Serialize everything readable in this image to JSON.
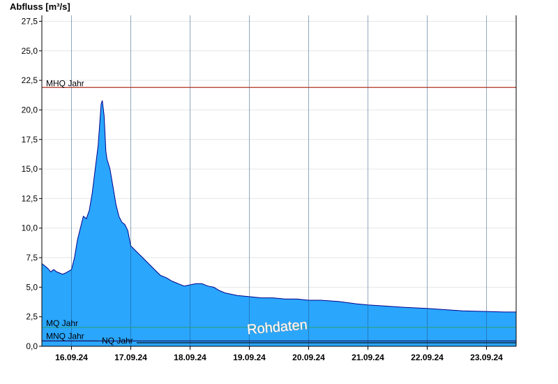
{
  "chart_data": {
    "type": "area",
    "ylabel": "Abfluss [m³/s]",
    "xlabel": "",
    "ylim": [
      0,
      28
    ],
    "grid": true,
    "y_ticks": [
      "0,0",
      "2,5",
      "5,0",
      "7,5",
      "10,0",
      "12,5",
      "15,0",
      "17,5",
      "20,0",
      "22,5",
      "25,0",
      "27,5"
    ],
    "y_tick_values": [
      0,
      2.5,
      5,
      7.5,
      10,
      12.5,
      15,
      17.5,
      20,
      22.5,
      25,
      27.5
    ],
    "x_ticks": [
      "16.09.24",
      "17.09.24",
      "18.09.24",
      "19.09.24",
      "20.09.24",
      "21.09.24",
      "22.09.24",
      "23.09.24"
    ],
    "x_range_days": [
      15.5,
      23.5
    ],
    "reference_lines": [
      {
        "label": "MHQ Jahr",
        "value": 21.9,
        "color": "#b03020"
      },
      {
        "label": "MQ Jahr",
        "value": 1.6,
        "color": "#2aa080"
      },
      {
        "label": "MNQ Jahr",
        "value": 0.45,
        "color": "#1a1a6a"
      },
      {
        "label": "NQ Jahr",
        "value": 0.3,
        "color": "#000000"
      }
    ],
    "series": [
      {
        "color": "#2aa6fd",
        "line_color": "#00008b",
        "x": [
          15.5,
          15.55,
          15.6,
          15.65,
          15.7,
          15.75,
          15.8,
          15.85,
          15.9,
          16.0,
          16.05,
          16.1,
          16.15,
          16.2,
          16.25,
          16.3,
          16.35,
          16.4,
          16.45,
          16.5,
          16.52,
          16.55,
          16.58,
          16.6,
          16.62,
          16.65,
          16.7,
          16.75,
          16.8,
          16.85,
          16.9,
          16.95,
          17.0,
          17.1,
          17.2,
          17.3,
          17.4,
          17.5,
          17.6,
          17.7,
          17.8,
          17.9,
          18.0,
          18.1,
          18.2,
          18.3,
          18.4,
          18.5,
          18.6,
          18.8,
          19.0,
          19.2,
          19.4,
          19.6,
          19.8,
          20.0,
          20.2,
          20.5,
          20.8,
          21.0,
          21.3,
          21.6,
          22.0,
          22.3,
          22.6,
          23.0,
          23.3,
          23.5
        ],
        "values": [
          7.0,
          6.8,
          6.6,
          6.3,
          6.5,
          6.3,
          6.2,
          6.1,
          6.2,
          6.5,
          7.5,
          9.0,
          10.0,
          11.0,
          10.8,
          11.5,
          13.0,
          15.0,
          17.0,
          20.5,
          20.8,
          19.5,
          16.5,
          15.8,
          15.5,
          15.0,
          13.5,
          12.0,
          11.0,
          10.5,
          10.3,
          9.8,
          8.5,
          8.0,
          7.5,
          7.0,
          6.5,
          6.0,
          5.8,
          5.5,
          5.3,
          5.1,
          5.2,
          5.3,
          5.3,
          5.1,
          5.0,
          4.7,
          4.5,
          4.3,
          4.2,
          4.1,
          4.1,
          4.0,
          4.0,
          3.9,
          3.9,
          3.8,
          3.6,
          3.5,
          3.4,
          3.3,
          3.2,
          3.1,
          3.0,
          2.95,
          2.9,
          2.9
        ]
      }
    ],
    "annotations": [
      "Rohdaten"
    ]
  }
}
